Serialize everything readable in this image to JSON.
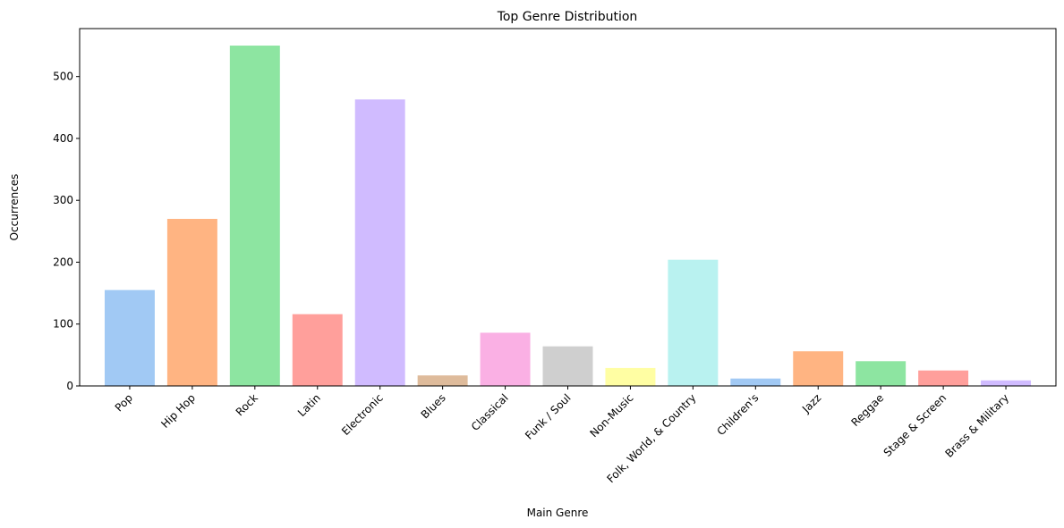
{
  "chart_data": {
    "type": "bar",
    "title": "Top Genre Distribution",
    "xlabel": "Main Genre",
    "ylabel": "Occurrences",
    "categories": [
      "Pop",
      "Hip Hop",
      "Rock",
      "Latin",
      "Electronic",
      "Blues",
      "Classical",
      "Funk / Soul",
      "Non-Music",
      "Folk, World, & Country",
      "Children's",
      "Jazz",
      "Reggae",
      "Stage & Screen",
      "Brass & Military"
    ],
    "values": [
      155,
      270,
      550,
      116,
      463,
      17,
      86,
      64,
      29,
      204,
      12,
      56,
      40,
      25,
      9
    ],
    "colors": [
      "#a1c9f4",
      "#ffb482",
      "#8de5a1",
      "#ff9f9b",
      "#d0bbff",
      "#debb9b",
      "#fab0e4",
      "#cfcfcf",
      "#fffea3",
      "#b9f2f0",
      "#a1c9f4",
      "#ffb482",
      "#8de5a1",
      "#ff9f9b",
      "#d0bbff"
    ],
    "yticks": [
      0,
      100,
      200,
      300,
      400,
      500
    ],
    "ylim": [
      0,
      577.5
    ],
    "grid": false,
    "legend": "none"
  }
}
